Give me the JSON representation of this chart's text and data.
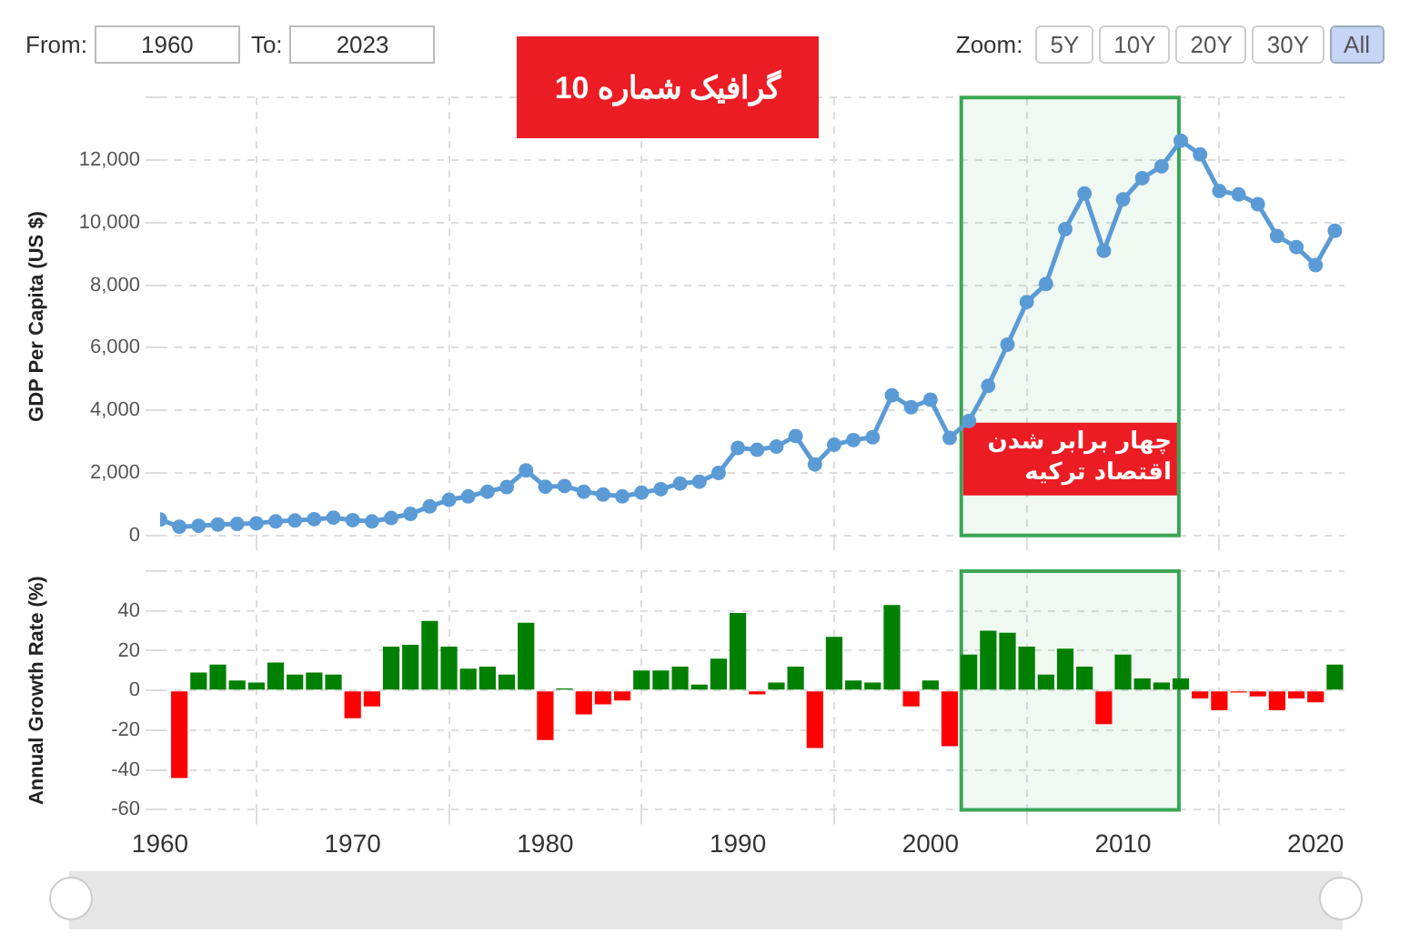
{
  "chart_data": [
    {
      "type": "line",
      "title": "گرافیک شماره 10",
      "ylabel": "GDP Per Capita (US $)",
      "annotations": [
        "From:",
        "1960",
        "To:",
        "2023",
        "Zoom:",
        "5Y",
        "10Y",
        "20Y",
        "30Y",
        "All"
      ],
      "x": [
        1960,
        1961,
        1962,
        1963,
        1964,
        1965,
        1966,
        1967,
        1968,
        1969,
        1970,
        1971,
        1972,
        1973,
        1974,
        1975,
        1976,
        1977,
        1978,
        1979,
        1980,
        1981,
        1982,
        1983,
        1984,
        1985,
        1986,
        1987,
        1988,
        1989,
        1990,
        1991,
        1992,
        1993,
        1994,
        1995,
        1996,
        1997,
        1998,
        1999,
        2000,
        2001,
        2002,
        2003,
        2004,
        2005,
        2006,
        2007,
        2008,
        2009,
        2010,
        2011,
        2012,
        2013,
        2014,
        2015,
        2016,
        2017,
        2018,
        2019,
        2020,
        2021
      ],
      "series": [
        {
          "color": "#5b9bd5",
          "values": [
            510,
            280,
            310,
            350,
            370,
            390,
            450,
            480,
            520,
            570,
            490,
            450,
            560,
            690,
            930,
            1140,
            1250,
            1400,
            1550,
            2080,
            1560,
            1580,
            1400,
            1310,
            1250,
            1370,
            1480,
            1660,
            1720,
            2000,
            2800,
            2740,
            2840,
            3180,
            2270,
            2900,
            3050,
            3140,
            4480,
            4100,
            4340,
            3120,
            3660,
            4780,
            6100,
            7460,
            8040,
            9790,
            10930,
            9100,
            10740,
            11420,
            11800,
            12620,
            12180,
            11010,
            10900,
            10590,
            9570,
            9220,
            8640,
            9740
          ]
        }
      ],
      "xlim": [
        1960,
        2021.5
      ],
      "xticks": [
        1960,
        1970,
        1980,
        1990,
        2000,
        2010,
        2020
      ],
      "ylim": [
        0,
        14000
      ],
      "yticks": [
        0,
        {
          "value": 2000,
          "label": "2,000"
        },
        {
          "value": 4000,
          "label": "4,000"
        },
        {
          "value": 6000,
          "label": "6,000"
        },
        {
          "value": 8000,
          "label": "8,000"
        },
        {
          "value": 10000,
          "label": "10,000"
        },
        {
          "value": 12000,
          "label": "12,000"
        },
        {
          "value": 14000,
          "label": null
        }
      ],
      "tick_labels": "y",
      "grid": true,
      "legend": false,
      "marker": "circle",
      "line_style": "solid",
      "bands": [
        {
          "axis": "x",
          "from": 2001.6,
          "to": 2012.9,
          "label": "چهار برابر شدن اقتصاد ترکیه",
          "color": "#3aa655"
        }
      ]
    },
    {
      "type": "bar",
      "ylabel": "Annual Growth Rate (%)",
      "x": [
        1961,
        1962,
        1963,
        1964,
        1965,
        1966,
        1967,
        1968,
        1969,
        1970,
        1971,
        1972,
        1973,
        1974,
        1975,
        1976,
        1977,
        1978,
        1979,
        1980,
        1981,
        1982,
        1983,
        1984,
        1985,
        1986,
        1987,
        1988,
        1989,
        1990,
        1991,
        1992,
        1993,
        1994,
        1995,
        1996,
        1997,
        1998,
        1999,
        2000,
        2001,
        2002,
        2003,
        2004,
        2005,
        2006,
        2007,
        2008,
        2009,
        2010,
        2011,
        2012,
        2013,
        2014,
        2015,
        2016,
        2017,
        2018,
        2019,
        2020,
        2021
      ],
      "values": [
        -44,
        9,
        13,
        5,
        4,
        14,
        8,
        9,
        8,
        -14,
        -8,
        22,
        23,
        35,
        22,
        11,
        12,
        8,
        34,
        -25,
        1,
        -12,
        -7,
        -5,
        10,
        10,
        12,
        3,
        16,
        39,
        -2,
        4,
        12,
        -29,
        27,
        5,
        4,
        43,
        -8,
        5,
        -28,
        18,
        30,
        29,
        22,
        8,
        21,
        12,
        -17,
        18,
        6,
        4,
        6,
        -4,
        -10,
        -1,
        -3,
        -10,
        -4,
        -6,
        13
      ],
      "colors": [
        "#ff0000",
        "#008000",
        "#008000",
        "#008000",
        "#008000",
        "#008000",
        "#008000",
        "#008000",
        "#008000",
        "#ff0000",
        "#ff0000",
        "#008000",
        "#008000",
        "#008000",
        "#008000",
        "#008000",
        "#008000",
        "#008000",
        "#008000",
        "#ff0000",
        "#008000",
        "#ff0000",
        "#ff0000",
        "#ff0000",
        "#008000",
        "#008000",
        "#008000",
        "#008000",
        "#008000",
        "#008000",
        "#ff0000",
        "#008000",
        "#008000",
        "#ff0000",
        "#008000",
        "#008000",
        "#008000",
        "#008000",
        "#ff0000",
        "#008000",
        "#ff0000",
        "#008000",
        "#008000",
        "#008000",
        "#008000",
        "#008000",
        "#008000",
        "#008000",
        "#ff0000",
        "#008000",
        "#008000",
        "#008000",
        "#008000",
        "#ff0000",
        "#ff0000",
        "#ff0000",
        "#ff0000",
        "#ff0000",
        "#ff0000",
        "#ff0000",
        "#008000"
      ],
      "xlim": [
        1960,
        2021.5
      ],
      "xticks": [
        1960,
        1970,
        1980,
        1990,
        2000,
        2010,
        2020
      ],
      "ylim": [
        -60,
        60
      ],
      "yticks": [
        -60,
        -40,
        -20,
        0,
        20,
        40,
        {
          "value": 60,
          "label": null
        }
      ],
      "grid": true,
      "legend": false,
      "bands": [
        {
          "axis": "x",
          "from": 2001.6,
          "to": 2012.9,
          "color": "#3aa655"
        }
      ]
    }
  ]
}
